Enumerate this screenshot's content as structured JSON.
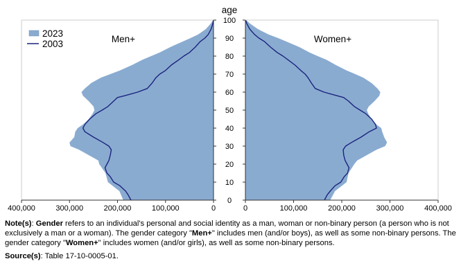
{
  "chart_data": {
    "type": "population-pyramid",
    "center_axis_label": "age",
    "age_ticks": [
      0,
      10,
      20,
      30,
      40,
      50,
      60,
      70,
      80,
      90,
      100
    ],
    "x_ticks": [
      400000,
      300000,
      200000,
      100000,
      0
    ],
    "x_tick_labels": [
      "400,000",
      "300,000",
      "200,000",
      "100,000",
      "0"
    ],
    "xlim": [
      0,
      400000
    ],
    "ylim": [
      0,
      100
    ],
    "panels": [
      {
        "label": "Men+",
        "side": "left"
      },
      {
        "label": "Women+",
        "side": "right"
      }
    ],
    "legend": {
      "placement": "top-left",
      "items": [
        "2023",
        "2003"
      ]
    },
    "series": [
      {
        "name": "2023",
        "style": "filled-area",
        "color": "#8aabd0",
        "ages": [
          0,
          5,
          10,
          15,
          20,
          22,
          25,
          28,
          30,
          32,
          35,
          38,
          40,
          42,
          45,
          48,
          50,
          52,
          55,
          58,
          60,
          62,
          65,
          68,
          70,
          72,
          75,
          78,
          80,
          82,
          85,
          88,
          90,
          92,
          95,
          98,
          100
        ],
        "men": [
          188000,
          196000,
          220000,
          225000,
          238000,
          240000,
          260000,
          280000,
          298000,
          300000,
          290000,
          288000,
          283000,
          272000,
          260000,
          252000,
          248000,
          250000,
          260000,
          272000,
          275000,
          268000,
          255000,
          235000,
          215000,
          195000,
          170000,
          148000,
          130000,
          112000,
          90000,
          65000,
          48000,
          32000,
          16000,
          6000,
          800
        ],
        "women": [
          176000,
          186000,
          210000,
          214000,
          226000,
          232000,
          252000,
          272000,
          290000,
          294000,
          288000,
          284000,
          282000,
          272000,
          262000,
          255000,
          252000,
          256000,
          268000,
          278000,
          280000,
          274000,
          262000,
          245000,
          228000,
          210000,
          188000,
          168000,
          150000,
          133000,
          112000,
          86000,
          68000,
          48000,
          26000,
          10000,
          1500
        ]
      },
      {
        "name": "2003",
        "style": "line",
        "color": "#1a237e",
        "ages": [
          0,
          3,
          5,
          8,
          10,
          13,
          15,
          18,
          20,
          22,
          25,
          28,
          30,
          32,
          35,
          38,
          40,
          42,
          45,
          48,
          50,
          52,
          55,
          57,
          58,
          60,
          62,
          65,
          68,
          70,
          72,
          75,
          78,
          80,
          82,
          85,
          88,
          90,
          92,
          95,
          98,
          100
        ],
        "men": [
          172000,
          178000,
          183000,
          195000,
          208000,
          215000,
          222000,
          226000,
          222000,
          218000,
          215000,
          213000,
          218000,
          230000,
          250000,
          268000,
          272000,
          268000,
          258000,
          245000,
          232000,
          220000,
          208000,
          200000,
          185000,
          158000,
          138000,
          128000,
          120000,
          112000,
          100000,
          88000,
          72000,
          62000,
          50000,
          38000,
          28000,
          18000,
          11000,
          5000,
          1500,
          200
        ],
        "women": [
          164000,
          170000,
          176000,
          186000,
          198000,
          205000,
          212000,
          215000,
          211000,
          207000,
          204000,
          203000,
          208000,
          220000,
          240000,
          257000,
          272000,
          270000,
          262000,
          250000,
          238000,
          226000,
          214000,
          204000,
          190000,
          163000,
          145000,
          137000,
          130000,
          124000,
          115000,
          103000,
          88000,
          78000,
          66000,
          52000,
          40000,
          28000,
          19000,
          9000,
          3000,
          500
        ]
      }
    ]
  },
  "notes": {
    "note_label": "Note(s)",
    "note_separator": ": ",
    "gender_term": "Gender",
    "text_1": " refers to an individual's personal and social identity as a man, woman or non-binary person (a person who is not exclusively a man or a woman). The gender category \"",
    "men_term": "Men+",
    "text_2": "\" includes men (and/or boys), as well as some non-binary persons. The gender category \"",
    "women_term": "Women+",
    "text_3": "\" includes women (and/or girls), as well as some non-binary persons.",
    "source_label": "Source(s)",
    "source_separator": ": ",
    "source_text": "Table 17-10-0005-01."
  }
}
